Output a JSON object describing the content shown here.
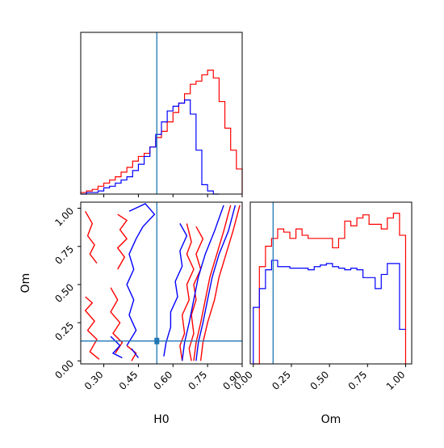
{
  "chart_data": [
    {
      "panel": "H0 marginal",
      "type": "histogram",
      "x_range": [
        0.2,
        0.9
      ],
      "truth": 0.53,
      "series": [
        {
          "color": "#ff0000",
          "bins": [
            0.2,
            0.225,
            0.25,
            0.275,
            0.3,
            0.325,
            0.35,
            0.375,
            0.4,
            0.425,
            0.45,
            0.475,
            0.5,
            0.525,
            0.55,
            0.575,
            0.6,
            0.625,
            0.65,
            0.675,
            0.7,
            0.725,
            0.75,
            0.775,
            0.8,
            0.825,
            0.85,
            0.875,
            0.9
          ],
          "counts": [
            0.01,
            0.02,
            0.03,
            0.05,
            0.07,
            0.09,
            0.11,
            0.14,
            0.17,
            0.21,
            0.24,
            0.26,
            0.3,
            0.36,
            0.4,
            0.46,
            0.52,
            0.58,
            0.64,
            0.7,
            0.72,
            0.76,
            0.79,
            0.74,
            0.59,
            0.42,
            0.28,
            0.16
          ]
        },
        {
          "color": "#0000ff",
          "bins": [
            0.2,
            0.225,
            0.25,
            0.275,
            0.3,
            0.325,
            0.35,
            0.375,
            0.4,
            0.425,
            0.45,
            0.475,
            0.5,
            0.525,
            0.55,
            0.575,
            0.6,
            0.625,
            0.65,
            0.675,
            0.7,
            0.725,
            0.75,
            0.775,
            0.8
          ],
          "counts": [
            0.0,
            0.01,
            0.01,
            0.02,
            0.04,
            0.05,
            0.07,
            0.09,
            0.11,
            0.15,
            0.19,
            0.24,
            0.3,
            0.38,
            0.46,
            0.53,
            0.56,
            0.58,
            0.6,
            0.51,
            0.28,
            0.06,
            0.02,
            0.0
          ]
        }
      ]
    },
    {
      "panel": "H0 vs Om joint",
      "type": "contour",
      "xlabel": "H0",
      "ylabel": "Om",
      "xlim": [
        0.2,
        0.9
      ],
      "ylim": [
        -0.02,
        1.04
      ],
      "x_ticks": [
        "0.30",
        "0.45",
        "0.60",
        "0.75",
        "0.90"
      ],
      "y_ticks": [
        "0.00",
        "0.25",
        "0.50",
        "0.75",
        "1.00"
      ],
      "truth": {
        "H0": 0.53,
        "Om": 0.13
      },
      "series": [
        {
          "color": "#ff0000",
          "contours": [
            [
              [
                0.89,
                1.02
              ],
              [
                0.86,
                0.85
              ],
              [
                0.83,
                0.7
              ],
              [
                0.8,
                0.55
              ],
              [
                0.78,
                0.4
              ],
              [
                0.75,
                0.25
              ],
              [
                0.73,
                0.12
              ],
              [
                0.72,
                0.0
              ]
            ],
            [
              [
                0.85,
                1.02
              ],
              [
                0.82,
                0.85
              ],
              [
                0.79,
                0.7
              ],
              [
                0.76,
                0.55
              ],
              [
                0.74,
                0.4
              ],
              [
                0.72,
                0.25
              ],
              [
                0.7,
                0.12
              ],
              [
                0.69,
                0.0
              ]
            ],
            [
              [
                0.66,
                0.9
              ],
              [
                0.68,
                0.78
              ],
              [
                0.66,
                0.7
              ],
              [
                0.69,
                0.6
              ],
              [
                0.66,
                0.5
              ],
              [
                0.67,
                0.4
              ],
              [
                0.64,
                0.3
              ],
              [
                0.65,
                0.18
              ],
              [
                0.63,
                0.1
              ],
              [
                0.64,
                0.0
              ]
            ],
            [
              [
                0.7,
                0.88
              ],
              [
                0.73,
                0.8
              ],
              [
                0.7,
                0.7
              ],
              [
                0.72,
                0.6
              ],
              [
                0.69,
                0.5
              ],
              [
                0.7,
                0.4
              ],
              [
                0.68,
                0.3
              ],
              [
                0.69,
                0.18
              ],
              [
                0.67,
                0.08
              ],
              [
                0.68,
                0.0
              ]
            ],
            [
              [
                0.36,
                0.96
              ],
              [
                0.4,
                0.92
              ],
              [
                0.37,
                0.86
              ],
              [
                0.4,
                0.8
              ],
              [
                0.36,
                0.74
              ],
              [
                0.39,
                0.68
              ],
              [
                0.36,
                0.6
              ]
            ],
            [
              [
                0.22,
                0.98
              ],
              [
                0.25,
                0.9
              ],
              [
                0.23,
                0.82
              ],
              [
                0.26,
                0.76
              ],
              [
                0.24,
                0.7
              ],
              [
                0.27,
                0.64
              ]
            ],
            [
              [
                0.33,
                0.48
              ],
              [
                0.36,
                0.4
              ],
              [
                0.33,
                0.32
              ],
              [
                0.37,
                0.25
              ],
              [
                0.34,
                0.18
              ],
              [
                0.38,
                0.12
              ],
              [
                0.35,
                0.05
              ]
            ],
            [
              [
                0.22,
                0.42
              ],
              [
                0.25,
                0.38
              ],
              [
                0.22,
                0.33
              ],
              [
                0.26,
                0.26
              ],
              [
                0.23,
                0.2
              ],
              [
                0.27,
                0.14
              ],
              [
                0.24,
                0.06
              ],
              [
                0.28,
                0.01
              ]
            ],
            [
              [
                0.4,
                0.1
              ],
              [
                0.44,
                0.05
              ],
              [
                0.42,
                0.0
              ]
            ]
          ]
        },
        {
          "color": "#0000ff",
          "contours": [
            [
              [
                0.87,
                1.02
              ],
              [
                0.84,
                0.85
              ],
              [
                0.8,
                0.7
              ],
              [
                0.77,
                0.55
              ],
              [
                0.75,
                0.4
              ],
              [
                0.73,
                0.25
              ],
              [
                0.71,
                0.12
              ],
              [
                0.7,
                0.0
              ]
            ],
            [
              [
                0.82,
                1.02
              ],
              [
                0.78,
                0.85
              ],
              [
                0.74,
                0.7
              ],
              [
                0.71,
                0.55
              ],
              [
                0.69,
                0.4
              ],
              [
                0.67,
                0.25
              ],
              [
                0.65,
                0.12
              ],
              [
                0.64,
                0.0
              ]
            ],
            [
              [
                0.41,
                0.98
              ],
              [
                0.48,
                1.03
              ],
              [
                0.52,
                0.96
              ],
              [
                0.47,
                0.88
              ],
              [
                0.44,
                0.8
              ],
              [
                0.41,
                0.7
              ],
              [
                0.43,
                0.6
              ],
              [
                0.4,
                0.5
              ],
              [
                0.43,
                0.4
              ],
              [
                0.41,
                0.3
              ],
              [
                0.44,
                0.2
              ],
              [
                0.4,
                0.1
              ]
            ],
            [
              [
                0.63,
                0.9
              ],
              [
                0.66,
                0.82
              ],
              [
                0.63,
                0.72
              ],
              [
                0.64,
                0.62
              ],
              [
                0.61,
                0.52
              ],
              [
                0.62,
                0.42
              ],
              [
                0.59,
                0.32
              ],
              [
                0.59,
                0.22
              ],
              [
                0.57,
                0.12
              ],
              [
                0.56,
                0.03
              ]
            ],
            [
              [
                0.33,
                0.16
              ],
              [
                0.37,
                0.1
              ],
              [
                0.34,
                0.05
              ],
              [
                0.38,
                0.02
              ]
            ],
            [
              [
                0.42,
                0.08
              ],
              [
                0.45,
                0.02
              ]
            ]
          ]
        }
      ]
    },
    {
      "panel": "Om marginal",
      "type": "histogram",
      "xlabel": "Om",
      "xlim": [
        -0.02,
        1.04
      ],
      "x_ticks": [
        "0.00",
        "0.25",
        "0.50",
        "0.75",
        "1.00"
      ],
      "truth": 0.13,
      "series": [
        {
          "color": "#ff0000",
          "bins": [
            0.0,
            0.04,
            0.08,
            0.12,
            0.16,
            0.2,
            0.24,
            0.28,
            0.32,
            0.36,
            0.4,
            0.44,
            0.48,
            0.52,
            0.56,
            0.6,
            0.64,
            0.68,
            0.72,
            0.76,
            0.8,
            0.84,
            0.88,
            0.92,
            0.96,
            1.0
          ],
          "counts": [
            0.0,
            0.62,
            0.75,
            0.8,
            0.86,
            0.84,
            0.8,
            0.86,
            0.82,
            0.8,
            0.8,
            0.8,
            0.8,
            0.74,
            0.8,
            0.91,
            0.88,
            0.93,
            0.95,
            0.89,
            0.89,
            0.86,
            0.93,
            0.96,
            0.82,
            0.0
          ]
        },
        {
          "color": "#0000ff",
          "bins": [
            0.0,
            0.04,
            0.08,
            0.12,
            0.16,
            0.2,
            0.24,
            0.28,
            0.32,
            0.36,
            0.4,
            0.44,
            0.48,
            0.52,
            0.56,
            0.6,
            0.64,
            0.68,
            0.72,
            0.76,
            0.8,
            0.84,
            0.88,
            0.92,
            0.96,
            1.0
          ],
          "counts": [
            0.36,
            0.48,
            0.6,
            0.66,
            0.62,
            0.62,
            0.61,
            0.61,
            0.61,
            0.6,
            0.62,
            0.63,
            0.64,
            0.62,
            0.61,
            0.6,
            0.61,
            0.6,
            0.55,
            0.55,
            0.48,
            0.57,
            0.64,
            0.64,
            0.22,
            0.22
          ]
        }
      ]
    }
  ]
}
